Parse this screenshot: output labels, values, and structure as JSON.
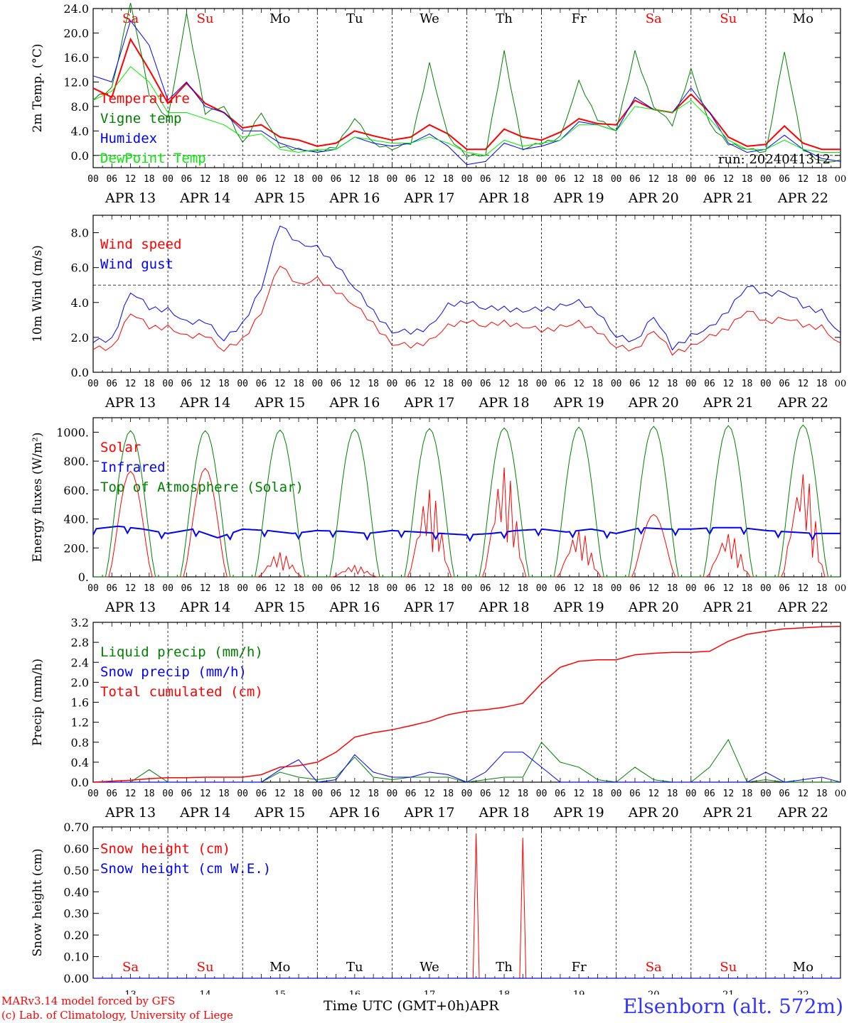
{
  "meta": {
    "run_label": "run: 2024041312",
    "footer_left_1": "MARv3.14 model forced by GFS",
    "footer_left_2": "(c) Lab. of Climatology, University of Liege",
    "station": "Elsenborn (alt. 572m)",
    "x_title": "Time UTC (GMT+0h)",
    "month": "APR"
  },
  "axis": {
    "hour_ticks": [
      "00",
      "06",
      "12",
      "18"
    ],
    "end_tick": "00",
    "days": [
      "APR 13",
      "APR 14",
      "APR 15",
      "APR 16",
      "APR 17",
      "APR 18",
      "APR 19",
      "APR 20",
      "APR 21",
      "APR 22"
    ],
    "day_numbers": [
      "13",
      "14",
      "15",
      "16",
      "17",
      "18",
      "19",
      "20",
      "21",
      "22"
    ],
    "weekdays": [
      "Sa",
      "Su",
      "Mo",
      "Tu",
      "We",
      "Th",
      "Fr",
      "Sa",
      "Su",
      "Mo"
    ],
    "weekend_color": "#ff0000",
    "weekday_color": "#000000"
  },
  "chart_data": [
    {
      "type": "line",
      "ylabel": "2m Temp. (°C)",
      "ylim": [
        -2,
        24
      ],
      "yticks": [
        "0.0",
        "4.0",
        "8.0",
        "12.0",
        "16.0",
        "20.0",
        "24.0"
      ],
      "ytick_values": [
        0,
        4,
        8,
        12,
        16,
        20,
        24
      ],
      "reference_line": 0,
      "show_weekdays": true,
      "x_hours": [
        0,
        6,
        12,
        18,
        24,
        30,
        36,
        42,
        48,
        54,
        60,
        66,
        72,
        78,
        84,
        90,
        96,
        102,
        108,
        114,
        120,
        126,
        132,
        138,
        144,
        150,
        156,
        162,
        168,
        174,
        180,
        186,
        192,
        198,
        204,
        210,
        216,
        222,
        228,
        234,
        240
      ],
      "series": [
        {
          "name": "Temperature",
          "color": "#ff0000",
          "width": 2,
          "values": [
            11,
            9.5,
            19,
            14,
            8.5,
            11.8,
            8.5,
            7,
            4.5,
            5,
            3,
            2.5,
            1.5,
            2,
            4,
            3.2,
            2.5,
            3,
            5,
            3.5,
            1,
            1,
            4.3,
            3,
            2.5,
            3.8,
            6,
            5.2,
            5,
            9,
            7.5,
            7,
            10,
            7,
            3,
            1.5,
            1.8,
            4.8,
            2,
            1,
            1
          ]
        },
        {
          "name": "Vigne temp",
          "color": "#008000",
          "width": 1,
          "values": [
            9,
            11,
            25,
            10,
            6,
            23,
            7,
            8,
            2,
            7,
            1.5,
            1,
            0.5,
            1.5,
            6,
            2,
            1,
            2,
            15,
            3,
            0,
            0,
            17,
            1,
            2,
            3,
            12,
            6,
            4,
            17,
            8,
            5,
            14,
            5,
            2,
            1,
            0.5,
            17,
            1,
            -1,
            -1
          ]
        },
        {
          "name": "Humidex",
          "color": "#0000ff",
          "width": 1,
          "values": [
            13,
            12,
            22,
            18,
            9,
            12,
            8,
            7,
            4,
            4,
            2,
            1,
            0.5,
            1,
            3,
            2,
            1.5,
            2,
            3.5,
            1.5,
            -1.5,
            -1,
            2,
            1,
            1.5,
            2.5,
            5.5,
            5,
            4,
            9.5,
            7.5,
            7,
            11,
            7,
            2,
            0.5,
            1,
            3.3,
            1,
            -0.5,
            -1
          ]
        },
        {
          "name": "DewPoint Temp",
          "color": "#00ee00",
          "width": 1,
          "values": [
            9,
            10.5,
            14.5,
            12,
            7,
            7,
            6,
            5,
            3,
            3.5,
            1,
            0.5,
            1,
            1,
            3,
            2.5,
            2,
            2,
            3,
            2,
            0.5,
            0,
            2.5,
            1.5,
            2,
            2.5,
            5,
            5,
            4,
            8,
            7.5,
            7,
            9,
            6,
            2.5,
            1,
            1,
            2.5,
            1,
            0.5,
            0.5
          ]
        }
      ],
      "legend": [
        "Temperature",
        "Vigne temp",
        "Humidex",
        "DewPoint Temp"
      ]
    },
    {
      "type": "line",
      "ylabel": "10m Wind (m/s)",
      "ylim": [
        0,
        9
      ],
      "yticks": [
        "0.0",
        "2.0",
        "4.0",
        "6.0",
        "8.0"
      ],
      "ytick_values": [
        0,
        2,
        4,
        6,
        8
      ],
      "reference_line": 5,
      "x_hours": [
        0,
        6,
        12,
        18,
        24,
        30,
        36,
        42,
        48,
        54,
        60,
        66,
        72,
        78,
        84,
        90,
        96,
        102,
        108,
        114,
        120,
        126,
        132,
        138,
        144,
        150,
        156,
        162,
        168,
        174,
        180,
        186,
        192,
        198,
        204,
        210,
        216,
        222,
        228,
        234,
        240
      ],
      "series": [
        {
          "name": "Wind speed",
          "color": "#ff0000",
          "width": 1,
          "values": [
            1.3,
            1.4,
            3.4,
            2.6,
            2.6,
            2,
            2.2,
            1.2,
            1.9,
            3.4,
            6.2,
            5,
            5.3,
            4.7,
            3.8,
            2.8,
            1.6,
            1.5,
            1.8,
            2.6,
            3,
            2.6,
            2.9,
            2.6,
            2.4,
            2.6,
            2.8,
            2.4,
            1.4,
            1.3,
            2.4,
            1.1,
            1.5,
            2,
            2.6,
            3.5,
            2.9,
            3.1,
            2.7,
            2.6,
            1.5
          ]
        },
        {
          "name": "Wind gust",
          "color": "#0000ff",
          "width": 1,
          "values": [
            1.7,
            1.9,
            4.6,
            3.7,
            3.6,
            2.8,
            3,
            1.8,
            2.8,
            4.8,
            8.5,
            7.4,
            7.1,
            6.2,
            4.8,
            3.5,
            2.3,
            2.3,
            2.6,
            3.8,
            4.1,
            3.6,
            3.7,
            3.5,
            3.6,
            3.8,
            4,
            3.5,
            2,
            1.8,
            3.2,
            1.4,
            2.1,
            2.5,
            3.6,
            4.9,
            4.5,
            4.6,
            3.8,
            3.5,
            2.1
          ]
        }
      ],
      "legend": [
        "Wind speed",
        "Wind gust"
      ]
    },
    {
      "type": "line",
      "ylabel": "Energy fluxes (W/m²)",
      "ylim": [
        0,
        1100
      ],
      "yticks": [
        "0.",
        "200.",
        "400.",
        "600.",
        "800.",
        "1000."
      ],
      "ytick_values": [
        0,
        200,
        400,
        600,
        800,
        1000
      ],
      "x_hours_note": "hourly from 0 to 240",
      "solar_peaks_day_index": [
        0,
        1,
        2,
        3,
        4,
        5,
        6,
        7,
        8,
        9
      ],
      "series": [
        {
          "name": "Solar",
          "color": "#ff0000",
          "width": 1,
          "daily_peak": [
            730,
            750,
            170,
            80,
            610,
            770,
            330,
            430,
            310,
            750
          ]
        },
        {
          "name": "Infrared",
          "color": "#0000ff",
          "width": 2,
          "values": [
            330,
            350,
            330,
            300,
            330,
            270,
            330,
            320,
            300,
            320,
            315,
            300,
            320,
            310,
            300,
            290,
            300,
            320,
            330,
            310,
            330,
            300,
            340,
            330,
            330,
            340,
            340,
            320,
            310,
            300,
            300
          ]
        },
        {
          "name": "Top of Atmosphere (Solar)",
          "color": "#008000",
          "width": 1,
          "daily_peak": [
            1010,
            1010,
            1015,
            1020,
            1025,
            1030,
            1035,
            1040,
            1045,
            1050
          ]
        }
      ],
      "legend": [
        "Solar",
        "Infrared",
        "Top of Atmosphere (Solar)"
      ]
    },
    {
      "type": "line",
      "ylabel": "Precip (mm/h)",
      "ylim": [
        0,
        3.2
      ],
      "yticks": [
        "0.0",
        "0.4",
        "0.8",
        "1.2",
        "1.6",
        "2.0",
        "2.4",
        "2.8",
        "3.2"
      ],
      "ytick_values": [
        0,
        0.4,
        0.8,
        1.2,
        1.6,
        2.0,
        2.4,
        2.8,
        3.2
      ],
      "x_hours": [
        0,
        6,
        12,
        18,
        24,
        30,
        36,
        42,
        48,
        54,
        60,
        66,
        72,
        78,
        84,
        90,
        96,
        102,
        108,
        114,
        120,
        126,
        132,
        138,
        144,
        150,
        156,
        162,
        168,
        174,
        180,
        186,
        192,
        198,
        204,
        210,
        216,
        222,
        228,
        234,
        240
      ],
      "series": [
        {
          "name": "Liquid precip (mm/h)",
          "color": "#008000",
          "width": 1,
          "values": [
            0,
            0,
            0,
            0.25,
            0,
            0,
            0,
            0,
            0,
            0,
            0.2,
            0.1,
            0.05,
            0.1,
            0.5,
            0.1,
            0.05,
            0.1,
            0.1,
            0.1,
            0,
            0.05,
            0.1,
            0.1,
            0.8,
            0.4,
            0.3,
            0.05,
            0,
            0.3,
            0.05,
            0,
            0,
            0.3,
            0.85,
            0,
            0.05,
            0,
            0,
            0,
            0
          ]
        },
        {
          "name": "Snow precip (mm/h)",
          "color": "#0000ff",
          "width": 1,
          "values": [
            0,
            0,
            0,
            0,
            0,
            0,
            0,
            0,
            0,
            0,
            0.25,
            0.45,
            0,
            0.05,
            0.55,
            0.2,
            0.1,
            0.1,
            0.2,
            0.15,
            0,
            0.2,
            0.6,
            0.6,
            0.3,
            0,
            0,
            0,
            0,
            0,
            0,
            0,
            0,
            0,
            0,
            0,
            0.2,
            0,
            0.05,
            0.1,
            0
          ]
        },
        {
          "name": "Total cumulated (cm)",
          "color": "#ff0000",
          "width": 1.5,
          "values": [
            0,
            0.02,
            0.04,
            0.07,
            0.09,
            0.09,
            0.1,
            0.1,
            0.1,
            0.15,
            0.3,
            0.33,
            0.4,
            0.6,
            0.9,
            0.99,
            1.05,
            1.13,
            1.22,
            1.35,
            1.42,
            1.45,
            1.5,
            1.58,
            1.98,
            2.3,
            2.42,
            2.45,
            2.45,
            2.55,
            2.58,
            2.6,
            2.6,
            2.62,
            2.82,
            2.96,
            3.02,
            3.07,
            3.09,
            3.11,
            3.12
          ]
        }
      ],
      "legend": [
        "Liquid precip (mm/h)",
        "Snow precip (mm/h)",
        "Total cumulated (cm)"
      ]
    },
    {
      "type": "line",
      "ylabel": "Snow height (cm)",
      "ylim": [
        0,
        0.7
      ],
      "yticks": [
        "0.00",
        "0.10",
        "0.20",
        "0.30",
        "0.40",
        "0.50",
        "0.60",
        "0.70"
      ],
      "ytick_values": [
        0,
        0.1,
        0.2,
        0.3,
        0.4,
        0.5,
        0.6,
        0.7
      ],
      "series": [
        {
          "name": "Snow height (cm)",
          "color": "#ff0000",
          "width": 1,
          "spikes": [
            {
              "x": 123,
              "y": 0.67
            },
            {
              "x": 138,
              "y": 0.65
            }
          ]
        },
        {
          "name": "Snow height (cm W.E.)",
          "color": "#0000ff",
          "width": 1,
          "values": [
            0
          ]
        }
      ],
      "legend": [
        "Snow height (cm)",
        "Snow height (cm W.E.)"
      ]
    }
  ]
}
